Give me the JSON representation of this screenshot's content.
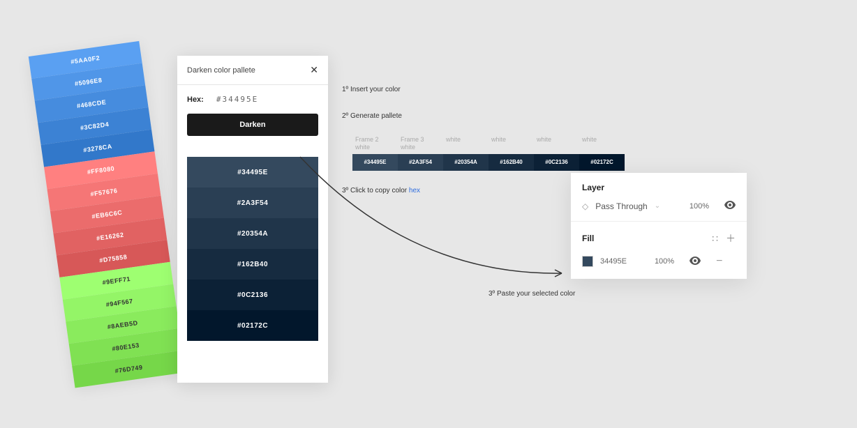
{
  "swatch_column": [
    {
      "hex": "#5AA0F2",
      "bg": "#5aa0f2",
      "fg": "#ffffff"
    },
    {
      "hex": "#5096E8",
      "bg": "#5096e8",
      "fg": "#ffffff"
    },
    {
      "hex": "#468CDE",
      "bg": "#468cde",
      "fg": "#ffffff"
    },
    {
      "hex": "#3C82D4",
      "bg": "#3c82d4",
      "fg": "#ffffff"
    },
    {
      "hex": "#3278CA",
      "bg": "#3278ca",
      "fg": "#ffffff"
    },
    {
      "hex": "#FF8080",
      "bg": "#ff8080",
      "fg": "#ffffff"
    },
    {
      "hex": "#F57676",
      "bg": "#f57676",
      "fg": "#ffffff"
    },
    {
      "hex": "#EB6C6C",
      "bg": "#eb6c6c",
      "fg": "#ffffff"
    },
    {
      "hex": "#E16262",
      "bg": "#e16262",
      "fg": "#ffffff"
    },
    {
      "hex": "#D75858",
      "bg": "#d75858",
      "fg": "#ffffff"
    },
    {
      "hex": "#9EFF71",
      "bg": "#9eff71",
      "fg": "#333333"
    },
    {
      "hex": "#94F567",
      "bg": "#94f567",
      "fg": "#333333"
    },
    {
      "hex": "#8AEB5D",
      "bg": "#8aeb5d",
      "fg": "#333333"
    },
    {
      "hex": "#80E153",
      "bg": "#80e153",
      "fg": "#333333"
    },
    {
      "hex": "#76D749",
      "bg": "#76d749",
      "fg": "#333333"
    }
  ],
  "darken_panel": {
    "title": "Darken color pallete",
    "hex_label": "Hex:",
    "hex_value": "#34495E",
    "button_label": "Darken",
    "results": [
      {
        "hex": "#34495E",
        "bg": "#34495e"
      },
      {
        "hex": "#2A3F54",
        "bg": "#2a3f54"
      },
      {
        "hex": "#20354A",
        "bg": "#20354a"
      },
      {
        "hex": "#162B40",
        "bg": "#162b40"
      },
      {
        "hex": "#0C2136",
        "bg": "#0c2136"
      },
      {
        "hex": "#02172C",
        "bg": "#02172c"
      }
    ]
  },
  "steps": {
    "s1": "1º Insert your color",
    "s2": "2º Generate pallete",
    "s3_a": "3º Click to copy color ",
    "s3_b": "hex",
    "s4": "3º Paste your selected color"
  },
  "frames": {
    "labels": [
      {
        "top": "Frame 2",
        "bot": "white"
      },
      {
        "top": "Frame 3",
        "bot": "white"
      },
      {
        "top": "",
        "bot": "white"
      },
      {
        "top": "",
        "bot": "white"
      },
      {
        "top": "",
        "bot": "white"
      },
      {
        "top": "",
        "bot": "white"
      }
    ],
    "swatches": [
      {
        "hex": "#34495E",
        "bg": "#34495e"
      },
      {
        "hex": "#2A3F54",
        "bg": "#2a3f54"
      },
      {
        "hex": "#20354A",
        "bg": "#20354a"
      },
      {
        "hex": "#162B40",
        "bg": "#162b40"
      },
      {
        "hex": "#0C2136",
        "bg": "#0c2136"
      },
      {
        "hex": "#02172C",
        "bg": "#02172c"
      }
    ]
  },
  "layer_panel": {
    "layer_title": "Layer",
    "blend_mode": "Pass Through",
    "layer_opacity": "100%",
    "fill_title": "Fill",
    "fill_hex": "34495E",
    "fill_chip_color": "#34495e",
    "fill_opacity": "100%"
  }
}
